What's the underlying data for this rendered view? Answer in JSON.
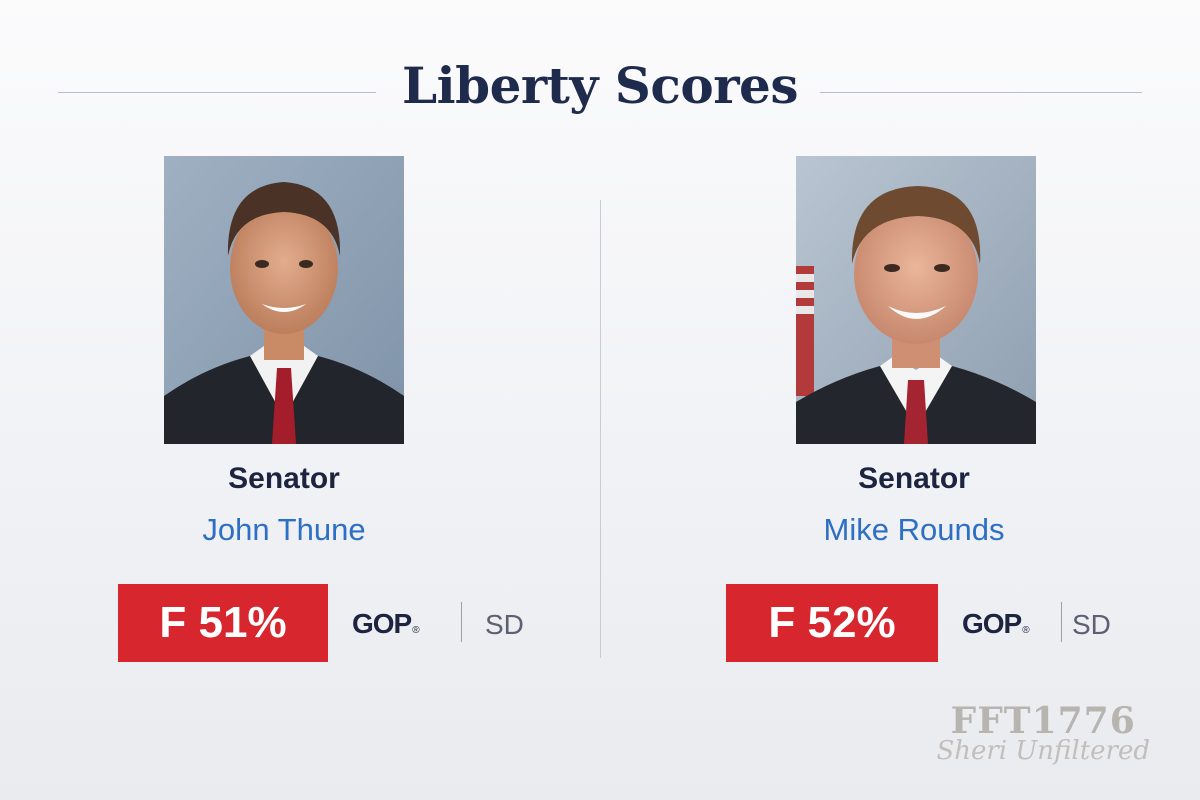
{
  "header": {
    "title": "Liberty Scores"
  },
  "senators": [
    {
      "role": "Senator",
      "name": "John Thune",
      "grade": "F 51%",
      "party": "GOP",
      "party_mark": "®",
      "state": "SD"
    },
    {
      "role": "Senator",
      "name": "Mike Rounds",
      "grade": "F 52%",
      "party": "GOP",
      "party_mark": "®",
      "state": "SD"
    }
  ],
  "watermark": {
    "line1": "FFT1776",
    "line2": "Sheri Unfiltered"
  },
  "colors": {
    "title": "#1f2b4c",
    "name": "#2d6fc2",
    "badge": "#d8262e"
  }
}
